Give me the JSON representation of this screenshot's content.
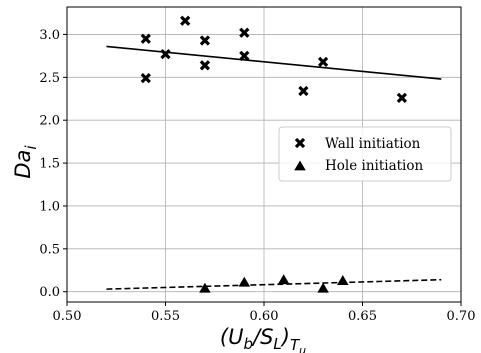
{
  "chart_data": {
    "type": "scatter",
    "xlabel": "(U_b/S_L)_{T_u}",
    "ylabel": "Da_i",
    "xlim": [
      0.5,
      0.7
    ],
    "ylim": [
      -0.12,
      3.32
    ],
    "grid": true,
    "legend_position": "center-right",
    "x_ticks": [
      "0.50",
      "0.55",
      "0.60",
      "0.65",
      "0.70"
    ],
    "y_ticks": [
      "0.0",
      "0.5",
      "1.0",
      "1.5",
      "2.0",
      "2.5",
      "3.0"
    ],
    "x_tick_values": [
      0.5,
      0.55,
      0.6,
      0.65,
      0.7
    ],
    "y_tick_values": [
      0.0,
      0.5,
      1.0,
      1.5,
      2.0,
      2.5,
      3.0
    ],
    "series": [
      {
        "name": "Wall initiation",
        "marker": "x",
        "color": "#000000",
        "points": [
          {
            "x": 0.54,
            "y": 2.95
          },
          {
            "x": 0.54,
            "y": 2.49
          },
          {
            "x": 0.55,
            "y": 2.77
          },
          {
            "x": 0.56,
            "y": 3.16
          },
          {
            "x": 0.57,
            "y": 2.93
          },
          {
            "x": 0.57,
            "y": 2.64
          },
          {
            "x": 0.59,
            "y": 3.02
          },
          {
            "x": 0.59,
            "y": 2.75
          },
          {
            "x": 0.62,
            "y": 2.34
          },
          {
            "x": 0.63,
            "y": 2.68
          },
          {
            "x": 0.67,
            "y": 2.26
          }
        ],
        "fit": {
          "style": "solid",
          "x": [
            0.52,
            0.69
          ],
          "y": [
            2.86,
            2.48
          ]
        }
      },
      {
        "name": "Hole initiation",
        "marker": "triangle",
        "color": "#000000",
        "points": [
          {
            "x": 0.57,
            "y": 0.04
          },
          {
            "x": 0.59,
            "y": 0.11
          },
          {
            "x": 0.61,
            "y": 0.14
          },
          {
            "x": 0.63,
            "y": 0.04
          },
          {
            "x": 0.64,
            "y": 0.13
          }
        ],
        "fit": {
          "style": "dashed",
          "x": [
            0.52,
            0.69
          ],
          "y": [
            0.03,
            0.14
          ]
        }
      }
    ]
  }
}
